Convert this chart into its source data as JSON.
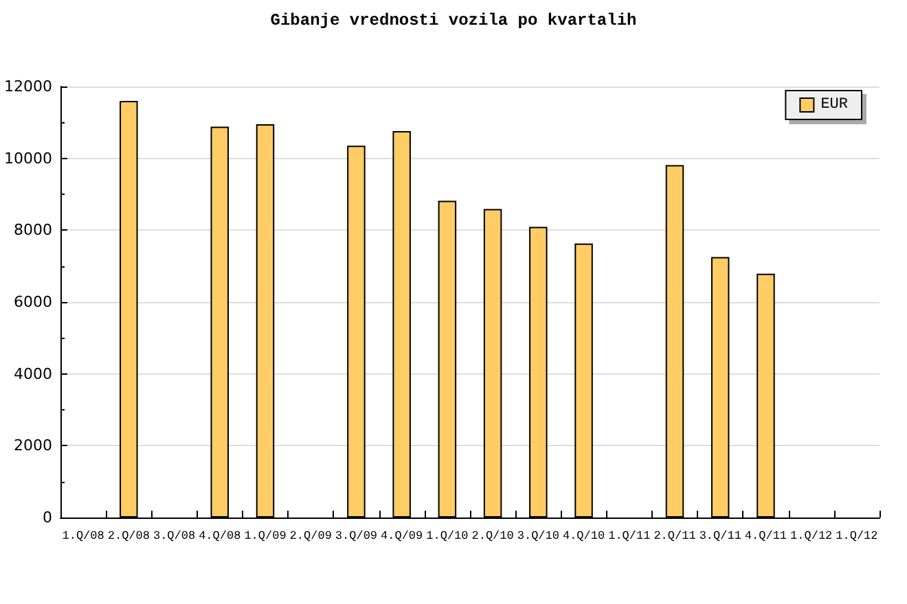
{
  "chart_data": {
    "type": "bar",
    "title": "Gibanje vrednosti vozila po kvartalih",
    "categories": [
      "1.Q/08",
      "2.Q/08",
      "3.Q/08",
      "4.Q/08",
      "1.Q/09",
      "2.Q/09",
      "3.Q/09",
      "4.Q/09",
      "1.Q/10",
      "2.Q/10",
      "3.Q/10",
      "4.Q/10",
      "1.Q/11",
      "2.Q/11",
      "3.Q/11",
      "4.Q/11",
      "1.Q/12",
      "1.Q/12"
    ],
    "series": [
      {
        "name": "EUR",
        "color": "#ffcc66",
        "values": [
          null,
          11600,
          null,
          10880,
          10950,
          null,
          10350,
          10760,
          8820,
          8590,
          8090,
          7630,
          null,
          9810,
          7250,
          6790,
          null,
          null
        ]
      }
    ],
    "ylim": [
      0,
      12000
    ],
    "yticks": [
      0,
      {
        "value": 1000,
        "label": null
      },
      2000,
      {
        "value": 3000,
        "label": null
      },
      4000,
      {
        "value": 5000,
        "label": null
      },
      6000,
      {
        "value": 7000,
        "label": null
      },
      8000,
      {
        "value": 9000,
        "label": null
      },
      10000,
      {
        "value": 11000,
        "label": null
      },
      12000
    ],
    "grid": "y",
    "legend": "top right"
  }
}
